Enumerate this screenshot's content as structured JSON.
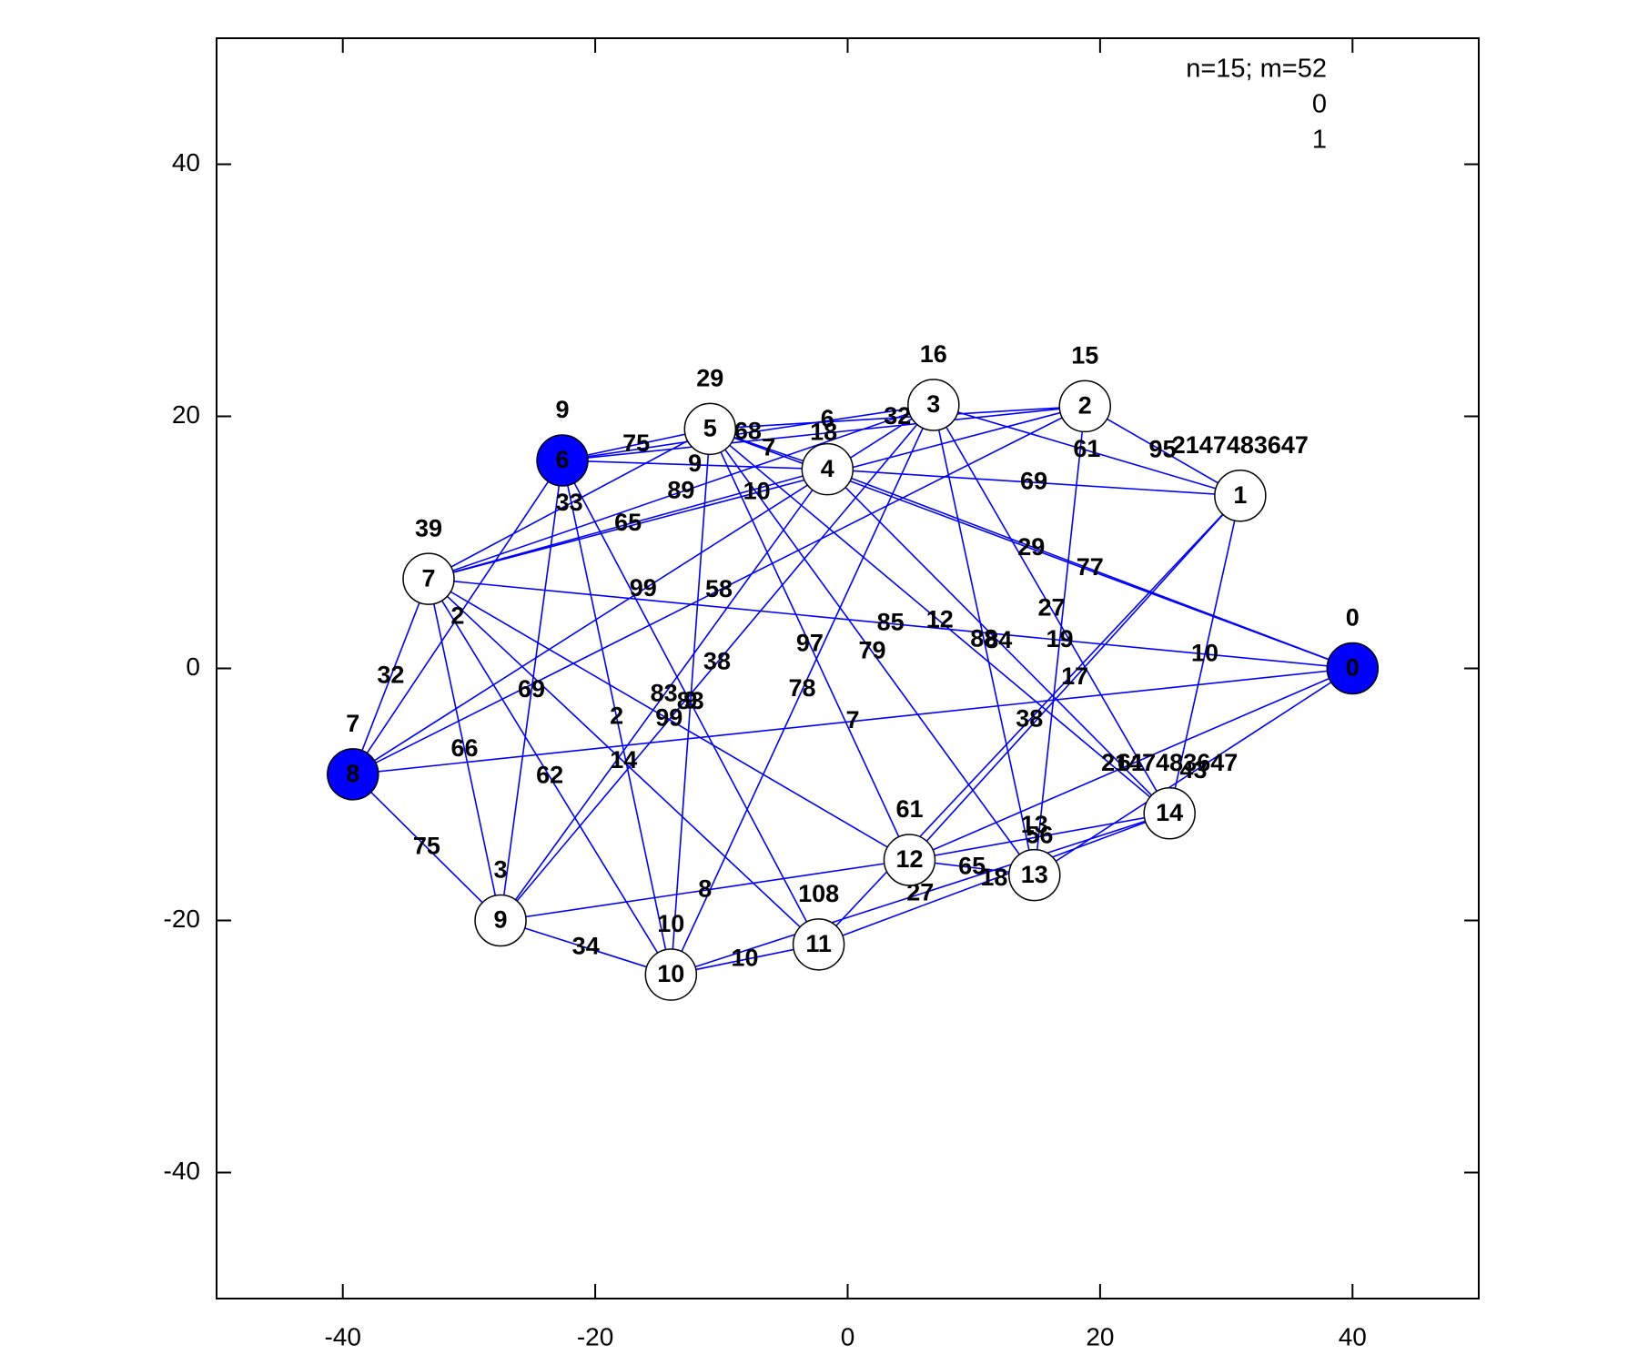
{
  "chart_data": {
    "type": "network",
    "legend": [
      "n=15; m=52",
      "0",
      "1"
    ],
    "xlim": [
      -50,
      50
    ],
    "ylim": [
      -50,
      50
    ],
    "xticks": [
      -40,
      -20,
      0,
      20,
      40
    ],
    "yticks": [
      -40,
      -20,
      0,
      20,
      40
    ],
    "edge_color": "#0000ff",
    "nodes": [
      {
        "id": "0",
        "x": 40,
        "y": 0,
        "label": 0,
        "color": "#0000ff"
      },
      {
        "id": "1",
        "x": 31.1,
        "y": 13.7,
        "label": 2147483647,
        "color": "#ffffff"
      },
      {
        "id": "2",
        "x": 18.8,
        "y": 20.8,
        "label": 15,
        "color": "#ffffff"
      },
      {
        "id": "3",
        "x": 6.8,
        "y": 20.9,
        "label": 16,
        "color": "#ffffff"
      },
      {
        "id": "4",
        "x": -1.6,
        "y": 15.8,
        "label": 6,
        "color": "#ffffff"
      },
      {
        "id": "5",
        "x": -10.9,
        "y": 19.0,
        "label": 29,
        "color": "#ffffff"
      },
      {
        "id": "6",
        "x": -22.6,
        "y": 16.5,
        "label": 9,
        "color": "#0000ff"
      },
      {
        "id": "7",
        "x": -33.2,
        "y": 7.1,
        "label": 39,
        "color": "#ffffff"
      },
      {
        "id": "8",
        "x": -39.2,
        "y": -8.4,
        "label": 7,
        "color": "#0000ff"
      },
      {
        "id": "9",
        "x": -27.5,
        "y": -20.0,
        "label": 3,
        "color": "#ffffff"
      },
      {
        "id": "10",
        "x": -14.0,
        "y": -24.3,
        "label": 10,
        "color": "#ffffff"
      },
      {
        "id": "11",
        "x": -2.3,
        "y": -21.9,
        "label": 108,
        "color": "#ffffff"
      },
      {
        "id": "12",
        "x": 4.9,
        "y": -15.2,
        "label": 61,
        "color": "#ffffff"
      },
      {
        "id": "13",
        "x": 14.8,
        "y": -16.4,
        "label": 13,
        "color": "#ffffff"
      },
      {
        "id": "14",
        "x": 25.5,
        "y": -11.5,
        "label": 2147483647,
        "color": "#ffffff"
      }
    ],
    "edges": [
      {
        "source": 6,
        "target": 5,
        "weight": 75
      },
      {
        "source": 6,
        "target": 3,
        "weight": 68
      },
      {
        "source": 6,
        "target": 2,
        "weight": 18
      },
      {
        "source": 5,
        "target": 2,
        "weight": 32
      },
      {
        "source": 5,
        "target": 4,
        "weight": 7
      },
      {
        "source": 6,
        "target": 4,
        "weight": 9
      },
      {
        "source": 4,
        "target": 1,
        "weight": 69
      },
      {
        "source": 4,
        "target": 0,
        "weight": 77
      },
      {
        "source": 5,
        "target": 0,
        "weight": 29
      },
      {
        "source": 2,
        "target": 1,
        "weight": 95
      },
      {
        "source": 3,
        "target": 1,
        "weight": 61
      },
      {
        "source": 1,
        "target": 14,
        "weight": 10
      },
      {
        "source": 7,
        "target": 0,
        "weight": 85
      },
      {
        "source": 8,
        "target": 0,
        "weight": 7
      },
      {
        "source": 8,
        "target": 9,
        "weight": 75
      },
      {
        "source": 8,
        "target": 7,
        "weight": 32
      },
      {
        "source": 9,
        "target": 10,
        "weight": 34
      },
      {
        "source": 9,
        "target": 12,
        "weight": 8
      },
      {
        "source": 10,
        "target": 14,
        "weight": 27
      },
      {
        "source": 11,
        "target": 14,
        "weight": 18
      },
      {
        "source": 12,
        "target": 14,
        "weight": 56
      },
      {
        "source": 12,
        "target": 0,
        "weight": 61
      },
      {
        "source": 13,
        "target": 0,
        "weight": 43
      },
      {
        "source": 8,
        "target": 6,
        "weight": 2
      },
      {
        "source": 7,
        "target": 9,
        "weight": 66
      },
      {
        "source": 7,
        "target": 10,
        "weight": 62
      },
      {
        "source": 7,
        "target": 12,
        "weight": 99
      },
      {
        "source": 7,
        "target": 11,
        "weight": 14
      },
      {
        "source": 7,
        "target": 4,
        "weight": 65
      },
      {
        "source": 7,
        "target": 3,
        "weight": 89
      },
      {
        "source": 7,
        "target": 2,
        "weight": 10
      },
      {
        "source": 7,
        "target": 5,
        "weight": 33
      },
      {
        "source": 6,
        "target": 9,
        "weight": 69
      },
      {
        "source": 6,
        "target": 10,
        "weight": 2
      },
      {
        "source": 6,
        "target": 11,
        "weight": 83
      },
      {
        "source": 5,
        "target": 10,
        "weight": 9
      },
      {
        "source": 8,
        "target": 3,
        "weight": 99
      },
      {
        "source": 8,
        "target": 2,
        "weight": 58
      },
      {
        "source": 9,
        "target": 3,
        "weight": 38
      },
      {
        "source": 9,
        "target": 4,
        "weight": 83
      },
      {
        "source": 10,
        "target": 3,
        "weight": 78
      },
      {
        "source": 12,
        "target": 5,
        "weight": 97
      },
      {
        "source": 13,
        "target": 5,
        "weight": 79
      },
      {
        "source": 14,
        "target": 5,
        "weight": 12
      },
      {
        "source": 14,
        "target": 4,
        "weight": 84
      },
      {
        "source": 14,
        "target": 3,
        "weight": 27
      },
      {
        "source": 13,
        "target": 3,
        "weight": 88
      },
      {
        "source": 13,
        "target": 2,
        "weight": 19
      },
      {
        "source": 12,
        "target": 1,
        "weight": 17
      },
      {
        "source": 11,
        "target": 1,
        "weight": 38
      },
      {
        "source": 12,
        "target": 13,
        "weight": 65
      },
      {
        "source": 10,
        "target": 11,
        "weight": 10
      }
    ]
  }
}
